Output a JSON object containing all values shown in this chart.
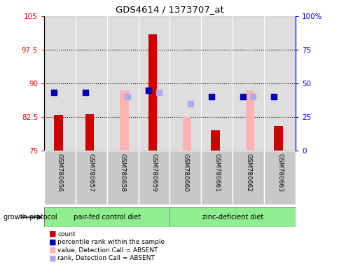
{
  "title": "GDS4614 / 1373707_at",
  "samples": [
    "GSM780656",
    "GSM780657",
    "GSM780658",
    "GSM780659",
    "GSM780660",
    "GSM780661",
    "GSM780662",
    "GSM780663"
  ],
  "ylim_left": [
    75,
    105
  ],
  "ylim_right": [
    0,
    100
  ],
  "yticks_left": [
    75,
    82.5,
    90,
    97.5,
    105
  ],
  "yticks_right": [
    0,
    25,
    50,
    75,
    100
  ],
  "ytick_labels_left": [
    "75",
    "82.5",
    "90",
    "97.5",
    "105"
  ],
  "ytick_labels_right": [
    "0",
    "25",
    "50",
    "75",
    "100%"
  ],
  "count_bars_present": [
    83.0,
    83.2,
    null,
    101.0,
    null,
    79.5,
    null,
    80.5
  ],
  "count_bars_absent": [
    null,
    null,
    88.5,
    null,
    82.5,
    null,
    88.5,
    null
  ],
  "percentile_present": [
    88.0,
    88.0,
    null,
    88.5,
    null,
    87.0,
    87.0,
    87.0
  ],
  "percentile_absent": [
    null,
    null,
    87.0,
    88.0,
    85.5,
    null,
    87.0,
    null
  ],
  "count_color": "#cc0000",
  "count_absent_color": "#ffb3b3",
  "rank_color": "#0000bb",
  "rank_absent_color": "#aaaaee",
  "group_bar_bg": "#c8c8c8",
  "group1_color": "#90ee90",
  "group2_color": "#90ee90",
  "bar_width": 0.28,
  "dot_size": 35,
  "group1_label": "pair-fed control diet",
  "group2_label": "zinc-deficient diet"
}
